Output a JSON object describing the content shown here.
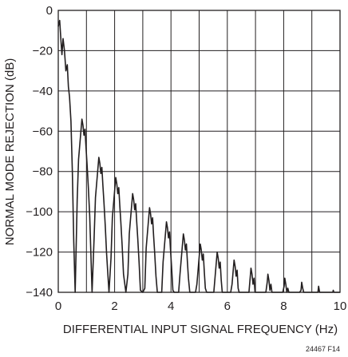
{
  "chart_data": {
    "type": "line",
    "xlabel": "DIFFERENTIAL INPUT SIGNAL FREQUENCY (Hz)",
    "ylabel": "NORMAL MODE REJECTION (dB)",
    "xlim": [
      0,
      10
    ],
    "ylim": [
      -140,
      0
    ],
    "x_ticks": [
      "0",
      "2",
      "4",
      "6",
      "8",
      "10"
    ],
    "y_ticks": [
      "0",
      "−20",
      "−40",
      "−60",
      "−80",
      "−100",
      "−120",
      "−140"
    ],
    "x_grid_step": 1,
    "y_grid_step": 20,
    "grid": true,
    "figure_id": "24467 F14",
    "series": [
      {
        "color": "#231f20",
        "nulls": [
          0.6,
          1.2,
          1.8,
          2.4,
          3.0,
          3.6,
          4.2,
          4.8,
          5.4,
          6.0,
          6.6,
          7.2,
          7.8,
          8.4,
          9.0,
          9.6
        ],
        "lobe_peaks": [
          {
            "x": 0.05,
            "y": -5
          },
          {
            "x": 0.82,
            "y": -54
          },
          {
            "x": 1.4,
            "y": -73
          },
          {
            "x": 1.98,
            "y": -83
          },
          {
            "x": 2.55,
            "y": -91
          },
          {
            "x": 3.13,
            "y": -98
          },
          {
            "x": 3.7,
            "y": -105
          },
          {
            "x": 4.28,
            "y": -111
          },
          {
            "x": 4.85,
            "y": -116
          },
          {
            "x": 5.43,
            "y": -120
          },
          {
            "x": 6.0,
            "y": -124
          },
          {
            "x": 6.58,
            "y": -128
          },
          {
            "x": 7.15,
            "y": -131
          },
          {
            "x": 7.73,
            "y": -133
          },
          {
            "x": 8.3,
            "y": -135
          },
          {
            "x": 8.88,
            "y": -137
          },
          {
            "x": 9.45,
            "y": -139
          }
        ]
      }
    ]
  }
}
